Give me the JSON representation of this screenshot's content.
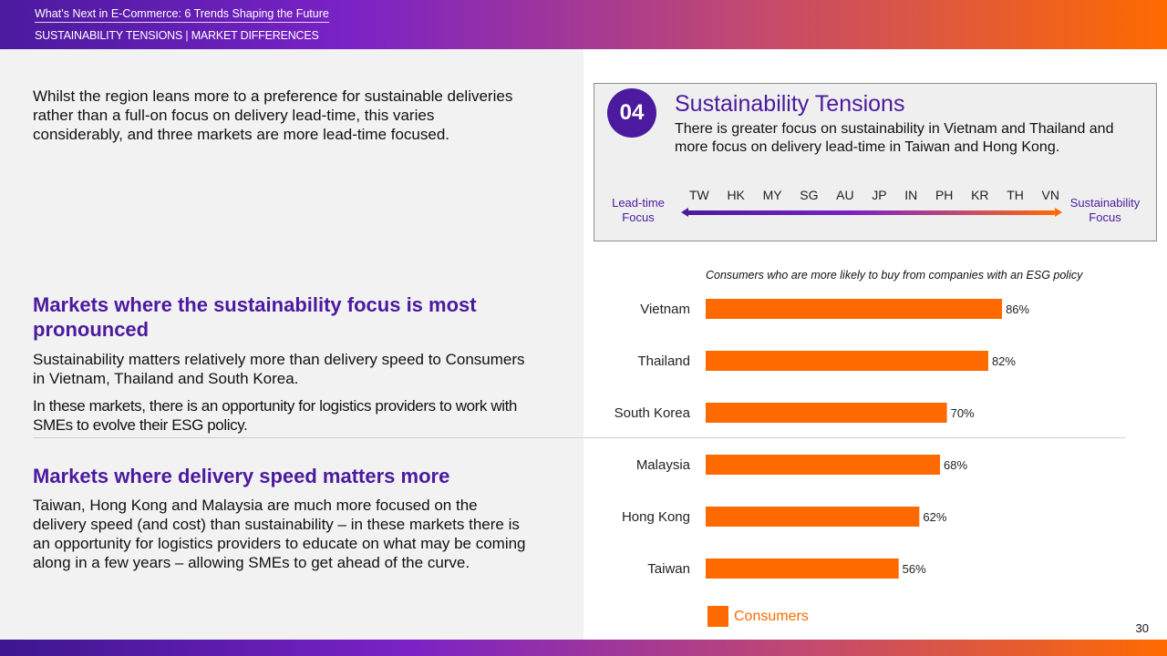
{
  "header": {
    "title": "What’s Next in E-Commerce: 6 Trends Shaping the Future",
    "subtitle": "SUSTAINABILITY TENSIONS | MARKET DIFFERENCES"
  },
  "left": {
    "intro": "Whilst the region leans more to a preference for sustainable deliveries rather than a full-on focus on delivery lead-time, this varies considerably, and three markets are more lead-time focused.",
    "section1_heading": "Markets where the sustainability focus is most pronounced",
    "section1_p1": "Sustainability matters relatively more than delivery speed to Consumers in Vietnam, Thailand and South Korea.",
    "section1_p2": "In these markets, there is an opportunity for logistics providers to work with SMEs to evolve their ESG policy.",
    "section2_heading": "Markets where delivery speed matters more",
    "section2_p1": "Taiwan, Hong Kong and Malaysia are much more focused on the delivery speed (and cost) than sustainability – in these markets there is an opportunity for logistics providers to educate on what may be coming along in a few years – allowing SMEs to get ahead of the curve."
  },
  "callout": {
    "badge": "04",
    "title": "Sustainability Tensions",
    "body": "There is greater focus on sustainability in Vietnam and Thailand and more focus on delivery lead-time in Taiwan and Hong Kong.",
    "left_label": "Lead-time Focus",
    "right_label": "Sustainability Focus",
    "scale": [
      "TW",
      "HK",
      "MY",
      "SG",
      "AU",
      "JP",
      "IN",
      "PH",
      "KR",
      "TH",
      "VN"
    ]
  },
  "chart_data": {
    "type": "bar",
    "orientation": "horizontal",
    "title": "Consumers who are more likely to buy from companies with an ESG policy",
    "categories": [
      "Vietnam",
      "Thailand",
      "South Korea",
      "Malaysia",
      "Hong Kong",
      "Taiwan"
    ],
    "series": [
      {
        "name": "Consumers",
        "values": [
          86,
          82,
          70,
          68,
          62,
          56
        ]
      }
    ],
    "value_suffix": "%",
    "xlim": [
      0,
      100
    ],
    "color": "#ff6a00"
  },
  "page_number": "30",
  "colors": {
    "purple": "#4b1a9e",
    "orange": "#ff6a00"
  }
}
